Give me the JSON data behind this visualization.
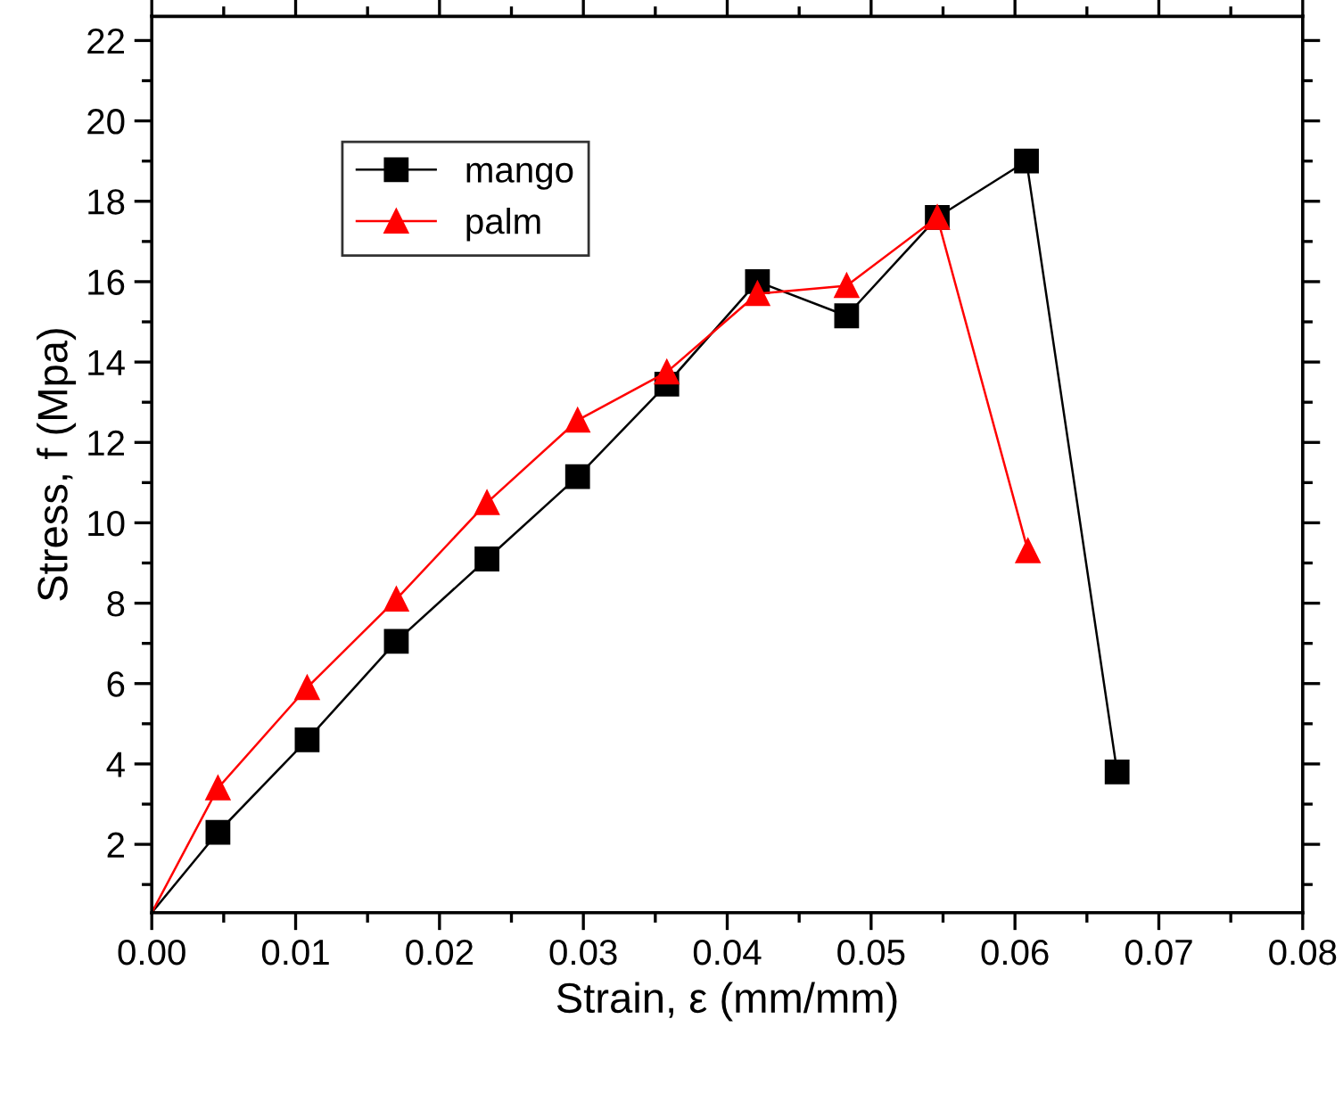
{
  "chart_data": {
    "type": "line",
    "xlabel": "Strain, ε (mm/mm)",
    "ylabel": "Stress, f (Mpa)",
    "xlim": [
      0,
      0.08
    ],
    "xticks": [
      {
        "value": 0,
        "label": "0.00"
      },
      {
        "value": 0.01,
        "label": "0.01"
      },
      {
        "value": 0.02,
        "label": "0.02"
      },
      {
        "value": 0.03,
        "label": "0.03"
      },
      {
        "value": 0.04,
        "label": "0.04"
      },
      {
        "value": 0.05,
        "label": "0.05"
      },
      {
        "value": 0.06,
        "label": "0.06"
      },
      {
        "value": 0.07,
        "label": "0.07"
      },
      {
        "value": 0.08,
        "label": "0.08"
      }
    ],
    "ylim": [
      0.3,
      22.6
    ],
    "yticks": [
      2,
      4,
      6,
      8,
      10,
      12,
      14,
      16,
      18,
      20,
      22
    ],
    "grid": false,
    "legend": "top left",
    "line_style": "solid",
    "series": [
      {
        "name": "mango",
        "color": "#000000",
        "marker": "square",
        "x": [
          0,
          0.0046,
          0.0108,
          0.017,
          0.0233,
          0.0296,
          0.0358,
          0.0421,
          0.0483,
          0.0546,
          0.0608,
          0.0671
        ],
        "values": [
          0.3,
          2.3,
          4.6,
          7.05,
          9.1,
          11.15,
          13.45,
          16.0,
          15.15,
          17.6,
          19.0,
          3.8
        ]
      },
      {
        "name": "palm",
        "color": "#ff0000",
        "marker": "triangle",
        "x": [
          0,
          0.0046,
          0.0108,
          0.017,
          0.0233,
          0.0296,
          0.0358,
          0.0421,
          0.0483,
          0.0546,
          0.0609
        ],
        "values": [
          0.3,
          3.4,
          5.9,
          8.1,
          10.5,
          12.55,
          13.75,
          15.7,
          15.9,
          17.6,
          9.3
        ]
      }
    ]
  }
}
